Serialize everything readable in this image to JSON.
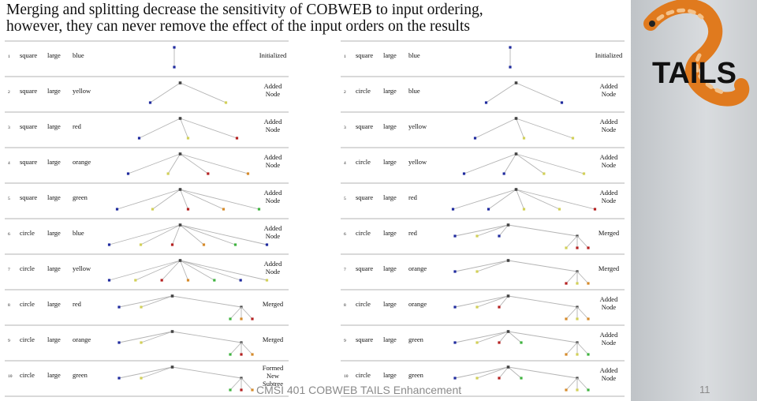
{
  "slide": {
    "title_line1": "Merging and splitting decrease the sensitivity of COBWEB to input ordering,",
    "title_line2": "however, they can never remove the effect of the input orders on the results",
    "footer": "CMSI 401 COBWEB TAILS Enhancement",
    "page_number": "11",
    "logo_text": "TAILS"
  },
  "colors": {
    "blue": "#1f2a9e",
    "yellow": "#d2d058",
    "red": "#b52020",
    "orange": "#d68a2a",
    "green": "#3fb33f",
    "root": "#444444",
    "edge": "#b4b4b4"
  },
  "left_table": [
    {
      "n": "1",
      "shape": "square",
      "size": "large",
      "color": "blue",
      "action": "Initialized",
      "tree": "single",
      "leaves": [
        "blue"
      ]
    },
    {
      "n": "2",
      "shape": "square",
      "size": "large",
      "color": "yellow",
      "action": "Added Node",
      "tree": "flat",
      "leaves": [
        "blue",
        "yellow"
      ]
    },
    {
      "n": "3",
      "shape": "square",
      "size": "large",
      "color": "red",
      "action": "Added Node",
      "tree": "flat",
      "leaves": [
        "blue",
        "yellow",
        "red"
      ]
    },
    {
      "n": "4",
      "shape": "square",
      "size": "large",
      "color": "orange",
      "action": "Added Node",
      "tree": "flat",
      "leaves": [
        "blue",
        "yellow",
        "red",
        "orange"
      ]
    },
    {
      "n": "5",
      "shape": "square",
      "size": "large",
      "color": "green",
      "action": "Added Node",
      "tree": "flat",
      "leaves": [
        "blue",
        "yellow",
        "red",
        "orange",
        "green"
      ]
    },
    {
      "n": "6",
      "shape": "circle",
      "size": "large",
      "color": "blue",
      "action": "Added Node",
      "tree": "flat",
      "leaves": [
        "blue",
        "yellow",
        "red",
        "orange",
        "green",
        "blue"
      ]
    },
    {
      "n": "7",
      "shape": "circle",
      "size": "large",
      "color": "yellow",
      "action": "Added Node",
      "tree": "flat",
      "leaves": [
        "blue",
        "yellow",
        "red",
        "orange",
        "green",
        "blue",
        "yellow"
      ]
    },
    {
      "n": "8",
      "shape": "circle",
      "size": "large",
      "color": "red",
      "action": "Merged",
      "tree": "merged",
      "leaves": [
        "blue",
        "yellow",
        "green",
        "orange",
        "red"
      ]
    },
    {
      "n": "9",
      "shape": "circle",
      "size": "large",
      "color": "orange",
      "action": "Merged",
      "tree": "merged2",
      "leaves": [
        "blue",
        "yellow",
        "green",
        "red",
        "orange"
      ]
    },
    {
      "n": "10",
      "shape": "circle",
      "size": "large",
      "color": "green",
      "action": "Formed New Subtree",
      "tree": "subtree",
      "leaves": [
        "blue",
        "yellow",
        "green",
        "red",
        "orange"
      ]
    }
  ],
  "right_table": [
    {
      "n": "1",
      "shape": "square",
      "size": "large",
      "color": "blue",
      "action": "Initialized",
      "tree": "single",
      "leaves": [
        "blue"
      ]
    },
    {
      "n": "2",
      "shape": "circle",
      "size": "large",
      "color": "blue",
      "action": "Added Node",
      "tree": "flat",
      "leaves": [
        "blue",
        "blue"
      ]
    },
    {
      "n": "3",
      "shape": "square",
      "size": "large",
      "color": "yellow",
      "action": "Added Node",
      "tree": "flat",
      "leaves": [
        "blue",
        "yellow",
        "yellow"
      ]
    },
    {
      "n": "4",
      "shape": "circle",
      "size": "large",
      "color": "yellow",
      "action": "Added Node",
      "tree": "flat",
      "leaves": [
        "blue",
        "blue",
        "yellow",
        "yellow"
      ]
    },
    {
      "n": "5",
      "shape": "square",
      "size": "large",
      "color": "red",
      "action": "Added Node",
      "tree": "flat",
      "leaves": [
        "blue",
        "blue",
        "yellow",
        "yellow",
        "red"
      ]
    },
    {
      "n": "6",
      "shape": "circle",
      "size": "large",
      "color": "red",
      "action": "Merged",
      "tree": "merged",
      "leaves": [
        "blue",
        "yellow",
        "blue",
        "yellow",
        "red",
        "red"
      ]
    },
    {
      "n": "7",
      "shape": "square",
      "size": "large",
      "color": "orange",
      "action": "Merged",
      "tree": "merged2",
      "leaves": [
        "blue",
        "yellow",
        "red",
        "yellow",
        "orange"
      ]
    },
    {
      "n": "8",
      "shape": "circle",
      "size": "large",
      "color": "orange",
      "action": "Added Node",
      "tree": "merged2",
      "leaves": [
        "blue",
        "yellow",
        "red",
        "orange",
        "yellow",
        "orange"
      ]
    },
    {
      "n": "9",
      "shape": "square",
      "size": "large",
      "color": "green",
      "action": "Added Node",
      "tree": "merged2",
      "leaves": [
        "blue",
        "yellow",
        "red",
        "green",
        "orange",
        "yellow",
        "green"
      ]
    },
    {
      "n": "10",
      "shape": "circle",
      "size": "large",
      "color": "green",
      "action": "Added Node",
      "tree": "merged2",
      "leaves": [
        "blue",
        "yellow",
        "red",
        "green",
        "orange",
        "yellow",
        "green"
      ]
    }
  ]
}
